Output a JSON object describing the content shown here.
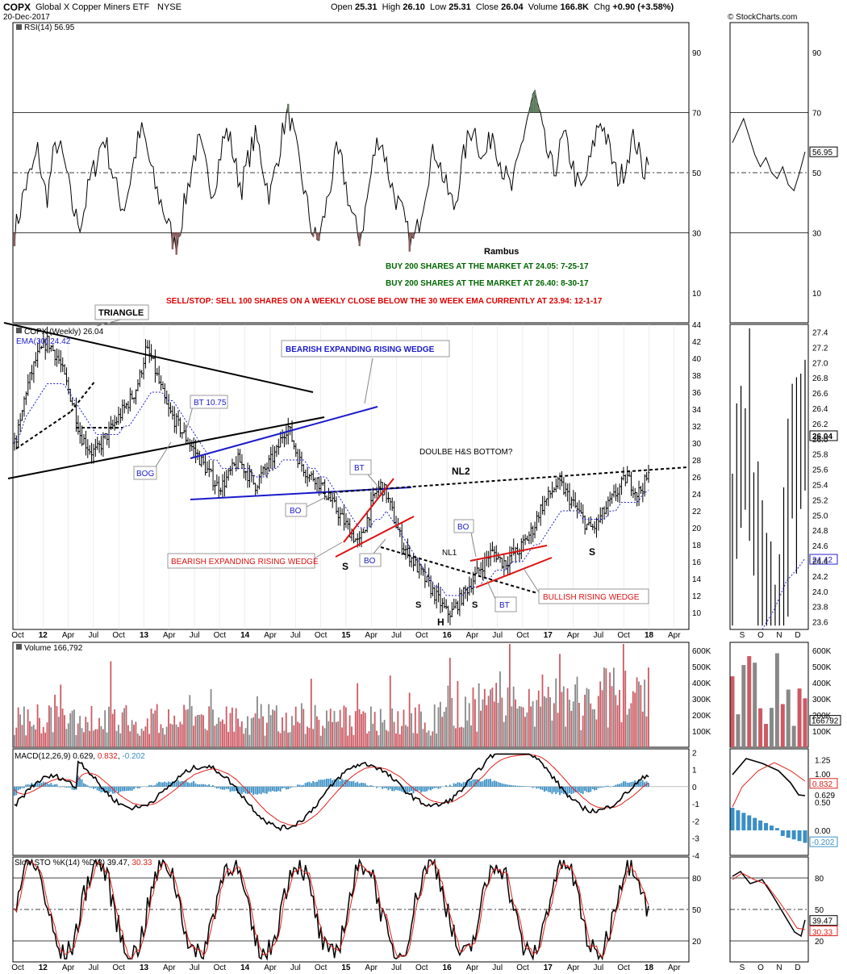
{
  "header": {
    "ticker": "COPX",
    "name": "Global X Copper Miners ETF",
    "exchange": "NYSE",
    "date": "20-Dec-2017",
    "open_label": "Open",
    "open": "25.31",
    "high_label": "High",
    "high": "26.10",
    "low_label": "Low",
    "low": "25.31",
    "close_label": "Close",
    "close": "26.04",
    "volume_label": "Volume",
    "volume": "166.8K",
    "chg_label": "Chg",
    "chg": "+0.90 (+3.58%)",
    "watermark": "© StockCharts.com"
  },
  "colors": {
    "price_bar": "#000000",
    "ema": "#2222cc",
    "volume_up": "#888888",
    "volume_down": "#cc5a63",
    "macd_hist": "#3a8fc4",
    "macd_signal": "#e0211c",
    "sto_d": "#e0211c",
    "rsi_shade_low": "#8b5e5e",
    "rsi_shade_high": "#5e7a5e",
    "trade_green": "#006600",
    "trade_red": "#dd0000",
    "annot_blue": "#1a1acc",
    "annot_red": "#dd1111"
  },
  "trades": {
    "author": "Rambus",
    "buy1": "BUY 200 SHARES AT THE MARKET AT 24.05: 7-25-17",
    "buy2": "BUY 200 SHARES AT THE MARKET AT 26.40: 8-30-17",
    "stop": "SELL/STOP: SELL 100 SHARES ON A WEEKLY CLOSE BELOW THE 30 WEEK EMA CURRENTLY AT 23.94: 12-1-17"
  },
  "annotations": {
    "triangle": "TRIANGLE",
    "bearish_wedge_top": "BEARISH EXPANDING RISING WEDGE",
    "bt_1075": "BT 10.75",
    "bog": "BOG",
    "bo1": "BO",
    "bt1": "BT",
    "bo2": "BO",
    "bearish_wedge_bottom": "BEARISH EXPANDING RISING WEDGE",
    "double_hs": "DOULBE H&S BOTTOM?",
    "nl2": "NL2",
    "nl1": "NL1",
    "bo3": "BO",
    "bt2": "BT",
    "bullish_wedge": "BULLISH RISING WEDGE",
    "s1": "S",
    "s2": "S",
    "h": "H",
    "s3": "S",
    "s4": "S"
  },
  "chart_data": [
    {
      "type": "line",
      "panel": "rsi",
      "title": "RSI(14) 56.95",
      "ylim": [
        0,
        100
      ],
      "yticks": [
        10,
        30,
        50,
        70,
        90
      ],
      "levels": [
        30,
        50,
        70
      ],
      "x_start": 2011.75,
      "x_end": 2017.97,
      "values": [
        30,
        36,
        44,
        48,
        52,
        58,
        46,
        42,
        54,
        60,
        56,
        50,
        40,
        35,
        33,
        40,
        48,
        52,
        58,
        62,
        55,
        48,
        42,
        38,
        44,
        52,
        60,
        64,
        58,
        50,
        44,
        40,
        35,
        30,
        25,
        32,
        40,
        48,
        56,
        60,
        54,
        48,
        44,
        52,
        60,
        64,
        58,
        50,
        45,
        52,
        58,
        62,
        56,
        48,
        42,
        50,
        58,
        66,
        70,
        62,
        54,
        46,
        38,
        30,
        27,
        32,
        40,
        48,
        56,
        54,
        46,
        38,
        32,
        28,
        36,
        46,
        56,
        62,
        58,
        50,
        44,
        40,
        36,
        30,
        26,
        30,
        38,
        46,
        54,
        58,
        52,
        46,
        42,
        38,
        48,
        56,
        62,
        66,
        60,
        54,
        58,
        64,
        58,
        52,
        48,
        44,
        50,
        58,
        66,
        72,
        76,
        68,
        60,
        54,
        50,
        56,
        62,
        58,
        52,
        46,
        44,
        50,
        56,
        64,
        68,
        62,
        56,
        50,
        48,
        52,
        58,
        62,
        56,
        50,
        56.95
      ]
    },
    {
      "type": "bar",
      "panel": "price",
      "title": "COPX (Weekly) 26.04",
      "ema_label": "EMA(30) 24.42",
      "ylim": [
        8,
        44
      ],
      "yticks": [
        10,
        12,
        14,
        16,
        18,
        20,
        22,
        24,
        26,
        28,
        30,
        32,
        34,
        36,
        38,
        40,
        42,
        44
      ],
      "x_start": 2011.75,
      "x_end": 2017.97,
      "close": [
        30,
        32,
        36,
        38,
        40,
        41,
        42,
        41,
        40,
        38,
        36,
        34,
        31,
        30,
        29,
        29,
        30,
        31,
        32,
        33,
        34,
        35,
        36,
        38,
        41,
        40,
        38,
        36,
        34,
        33,
        32,
        31,
        30,
        29,
        28,
        27,
        26,
        25,
        25,
        26,
        27,
        28,
        27,
        26,
        25,
        26,
        27,
        28,
        29,
        31,
        32,
        30,
        28,
        27,
        26,
        26,
        25,
        24,
        23,
        22,
        21,
        20,
        19,
        18,
        20,
        22,
        24,
        25,
        24,
        22,
        20,
        18,
        17,
        16,
        15,
        14,
        13,
        12,
        11,
        10,
        10,
        11,
        12,
        13,
        14,
        15,
        16,
        17,
        17,
        16,
        16,
        17,
        17,
        18,
        19,
        20,
        22,
        23,
        24,
        25,
        25,
        24,
        23,
        22,
        21,
        20,
        20,
        21,
        22,
        23,
        24,
        25,
        26,
        25,
        24,
        25,
        26.04
      ],
      "ema": [
        30,
        31,
        33,
        34,
        35,
        36,
        37,
        37,
        37,
        37,
        36,
        35,
        34,
        33,
        32,
        31,
        31,
        31,
        31,
        31,
        32,
        32,
        33,
        34,
        35,
        36,
        36,
        36,
        35,
        35,
        34,
        33,
        32,
        31,
        30,
        29,
        28,
        28,
        27,
        27,
        27,
        27,
        27,
        27,
        26,
        26,
        26,
        27,
        27,
        28,
        28,
        28,
        28,
        28,
        27,
        27,
        26,
        26,
        25,
        24,
        23,
        22,
        21,
        20,
        20,
        20,
        21,
        21,
        22,
        21,
        20,
        19,
        18,
        17,
        16,
        15,
        14,
        13,
        13,
        12,
        12,
        12,
        12,
        13,
        13,
        13,
        14,
        14,
        15,
        15,
        15,
        16,
        16,
        16,
        17,
        18,
        18,
        19,
        20,
        21,
        22,
        22,
        22,
        22,
        21,
        21,
        21,
        21,
        21,
        22,
        22,
        23,
        23,
        23,
        23,
        24,
        24.42
      ]
    },
    {
      "type": "bar",
      "panel": "volume",
      "title": "Volume 166,792",
      "ylim": [
        0,
        650000
      ],
      "yticks_labels": [
        "100K",
        "200K",
        "300K",
        "400K",
        "500K",
        "600K"
      ],
      "yticks": [
        100000,
        200000,
        300000,
        400000,
        500000,
        600000
      ],
      "last_label": "166792"
    },
    {
      "type": "line",
      "panel": "macd",
      "title": "MACD(12,26,9)",
      "macd": "0.629",
      "signal": "0.832",
      "hist": "-0.202",
      "ylim": [
        -4,
        2.2
      ],
      "yticks": [
        -4,
        -3,
        -2,
        -1,
        0,
        1,
        2
      ],
      "right_labels": [
        "1.25",
        "1.00",
        "0.50",
        "0.00"
      ]
    },
    {
      "type": "line",
      "panel": "sto",
      "title": "Slow STO %K(14) %D(3)",
      "k": "39.47",
      "d": "30.33",
      "ylim": [
        0,
        100
      ],
      "yticks": [
        20,
        50,
        80
      ],
      "levels": [
        20,
        50,
        80
      ]
    }
  ],
  "xaxis": {
    "labels": [
      "Oct",
      "12",
      "Apr",
      "Jul",
      "Oct",
      "13",
      "Apr",
      "Jul",
      "Oct",
      "14",
      "Apr",
      "Jul",
      "Oct",
      "15",
      "Apr",
      "Jul",
      "Oct",
      "16",
      "Apr",
      "Jul",
      "Oct",
      "17",
      "Apr",
      "Jul",
      "Oct",
      "18",
      "Apr"
    ],
    "bold": [
      "12",
      "13",
      "14",
      "15",
      "16",
      "17",
      "18"
    ],
    "right_labels": [
      "S",
      "O",
      "N",
      "D"
    ]
  },
  "right_price": {
    "yticks": [
      23.6,
      23.8,
      24.0,
      24.2,
      24.4,
      24.6,
      24.8,
      25.0,
      25.2,
      25.4,
      25.6,
      25.8,
      26.0,
      26.2,
      26.4,
      26.6,
      26.8,
      27.0,
      27.2,
      27.4
    ],
    "close_label": "26.04",
    "ema_label": "24.42",
    "rsi_label": "56.95"
  }
}
